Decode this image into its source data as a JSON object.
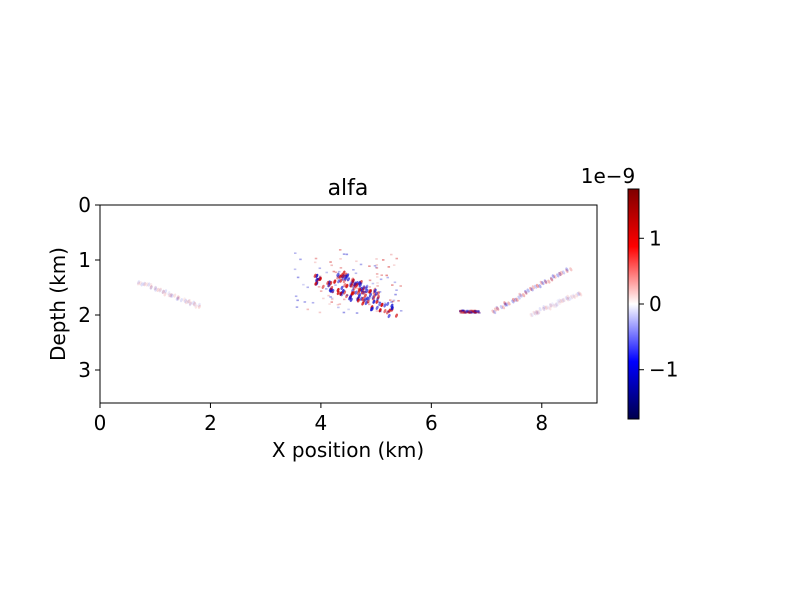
{
  "chart_data": {
    "type": "heatmap",
    "title": "alfa",
    "xlabel": "X position (km)",
    "ylabel": "Depth (km)",
    "xlim": [
      0,
      9
    ],
    "ylim": [
      3.6,
      0
    ],
    "x_ticks": [
      0,
      2,
      4,
      6,
      8
    ],
    "x_tick_labels": [
      "0",
      "2",
      "4",
      "6",
      "8"
    ],
    "y_ticks": [
      0,
      1,
      2,
      3
    ],
    "y_tick_labels": [
      "0",
      "1",
      "2",
      "3"
    ],
    "grid": false,
    "colormap": "seismic",
    "colorbar": {
      "range": [
        -1.75e-09,
        1.75e-09
      ],
      "ticks": [
        1e-09,
        0,
        -1e-09
      ],
      "tick_labels": [
        "1",
        "0",
        "−1"
      ],
      "offset_label": "1e−9",
      "colors": [
        "#00004c",
        "#0000ff",
        "#ffffff",
        "#ff0000",
        "#7f0000"
      ]
    },
    "features": [
      {
        "kind": "band",
        "x": [
          3.9,
          5.3
        ],
        "depth": [
          1.35,
          1.95
        ],
        "amplitude": 1.6e-09
      },
      {
        "kind": "band",
        "x": [
          4.3,
          5.0
        ],
        "depth": [
          1.3,
          1.65
        ],
        "amplitude": 1.3e-09
      },
      {
        "kind": "blob",
        "x": [
          3.5,
          5.5
        ],
        "depth": [
          0.8,
          1.95
        ],
        "amplitude": 9e-10
      },
      {
        "kind": "blob",
        "x": [
          6.5,
          6.85
        ],
        "depth": [
          1.9,
          1.95
        ],
        "amplitude": 8e-10
      },
      {
        "kind": "arc",
        "x": [
          7.1,
          8.5
        ],
        "depth": [
          1.95,
          1.15
        ],
        "amplitude": 6e-10
      },
      {
        "kind": "arc",
        "x": [
          0.7,
          1.8
        ],
        "depth": [
          1.4,
          1.85
        ],
        "amplitude": 2.5e-10
      },
      {
        "kind": "arc",
        "x": [
          7.8,
          8.7
        ],
        "depth": [
          2.0,
          1.6
        ],
        "amplitude": 2e-10
      }
    ]
  }
}
